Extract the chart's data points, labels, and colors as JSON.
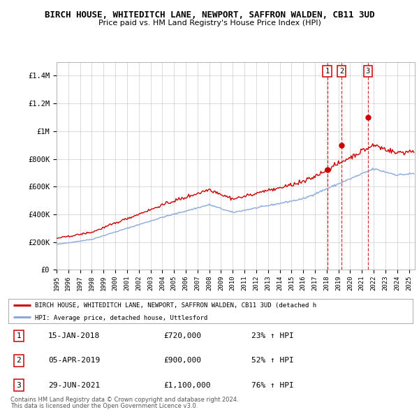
{
  "title_line1": "BIRCH HOUSE, WHITEDITCH LANE, NEWPORT, SAFFRON WALDEN, CB11 3UD",
  "title_line2": "Price paid vs. HM Land Registry's House Price Index (HPI)",
  "ylabel_ticks": [
    "£0",
    "£200K",
    "£400K",
    "£600K",
    "£800K",
    "£1M",
    "£1.2M",
    "£1.4M"
  ],
  "ytick_values": [
    0,
    200000,
    400000,
    600000,
    800000,
    1000000,
    1200000,
    1400000
  ],
  "ylim": [
    0,
    1500000
  ],
  "xlim_start": 1995.0,
  "xlim_end": 2025.5,
  "sale_color": "#cc0000",
  "hpi_color": "#88aadd",
  "sale_label": "BIRCH HOUSE, WHITEDITCH LANE, NEWPORT, SAFFRON WALDEN, CB11 3UD (detached h",
  "hpi_label": "HPI: Average price, detached house, Uttlesford",
  "transactions": [
    {
      "num": 1,
      "date": "15-JAN-2018",
      "price": "£720,000",
      "pct": "23%",
      "year": 2018.04,
      "price_val": 720000
    },
    {
      "num": 2,
      "date": "05-APR-2019",
      "price": "£900,000",
      "pct": "52%",
      "year": 2019.27,
      "price_val": 900000
    },
    {
      "num": 3,
      "date": "29-JUN-2021",
      "price": "£1,100,000",
      "pct": "76%",
      "year": 2021.49,
      "price_val": 1100000
    }
  ],
  "footer_line1": "Contains HM Land Registry data © Crown copyright and database right 2024.",
  "footer_line2": "This data is licensed under the Open Government Licence v3.0.",
  "bg_color": "#ffffff",
  "grid_color": "#cccccc",
  "xtick_years": [
    1995,
    1996,
    1997,
    1998,
    1999,
    2000,
    2001,
    2002,
    2003,
    2004,
    2005,
    2006,
    2007,
    2008,
    2009,
    2010,
    2011,
    2012,
    2013,
    2014,
    2015,
    2016,
    2017,
    2018,
    2019,
    2020,
    2021,
    2022,
    2023,
    2024,
    2025
  ]
}
